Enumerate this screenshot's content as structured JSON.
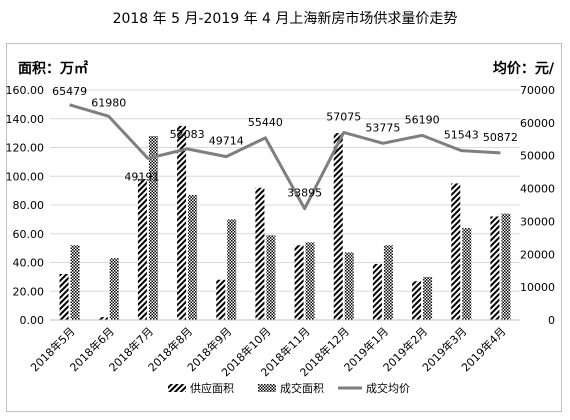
{
  "chart_data": {
    "type": "bar",
    "title": "2018 年 5 月-2019 年 4 月上海新房市场供求量价走势",
    "ylabel_left": "面积：万㎡",
    "ylabel_right": "均价：元/",
    "categories": [
      "2018年5月",
      "2018年6月",
      "2018年7月",
      "2018年8月",
      "2018年9月",
      "2018年10月",
      "2018年11月",
      "2018年12月",
      "2019年1月",
      "2019年2月",
      "2019年3月",
      "2019年4月"
    ],
    "series": [
      {
        "name": "供应面积",
        "type": "bar",
        "axis": "left",
        "values": [
          32,
          2,
          98,
          135,
          28,
          92,
          52,
          130,
          39,
          27,
          95,
          72
        ]
      },
      {
        "name": "成交面积",
        "type": "bar",
        "axis": "left",
        "values": [
          52,
          43,
          128,
          87,
          70,
          59,
          54,
          47,
          52,
          30,
          64,
          74
        ]
      },
      {
        "name": "成交均价",
        "type": "line",
        "axis": "right",
        "values": [
          65479,
          61980,
          49191,
          52083,
          49714,
          55440,
          33895,
          57075,
          53775,
          56190,
          51543,
          50872
        ]
      }
    ],
    "line_labels": [
      "65479",
      "61980",
      "49191",
      "52083",
      "49714",
      "55440",
      "33895",
      "57075",
      "53775",
      "56190",
      "51543",
      "50872"
    ],
    "left_ticks": [
      "0.00",
      "20.00",
      "40.00",
      "60.00",
      "80.00",
      "100.00",
      "120.00",
      "140.00",
      "160.00"
    ],
    "right_ticks": [
      "0",
      "10000",
      "20000",
      "30000",
      "40000",
      "50000",
      "60000",
      "70000"
    ],
    "ylim_left": [
      0,
      160
    ],
    "ylim_right": [
      0,
      70000
    ],
    "grid": true,
    "legend": "bottom",
    "colors": {
      "line": "#7f7f7f",
      "bar": "#000000",
      "grid": "#d9d9d9"
    }
  }
}
